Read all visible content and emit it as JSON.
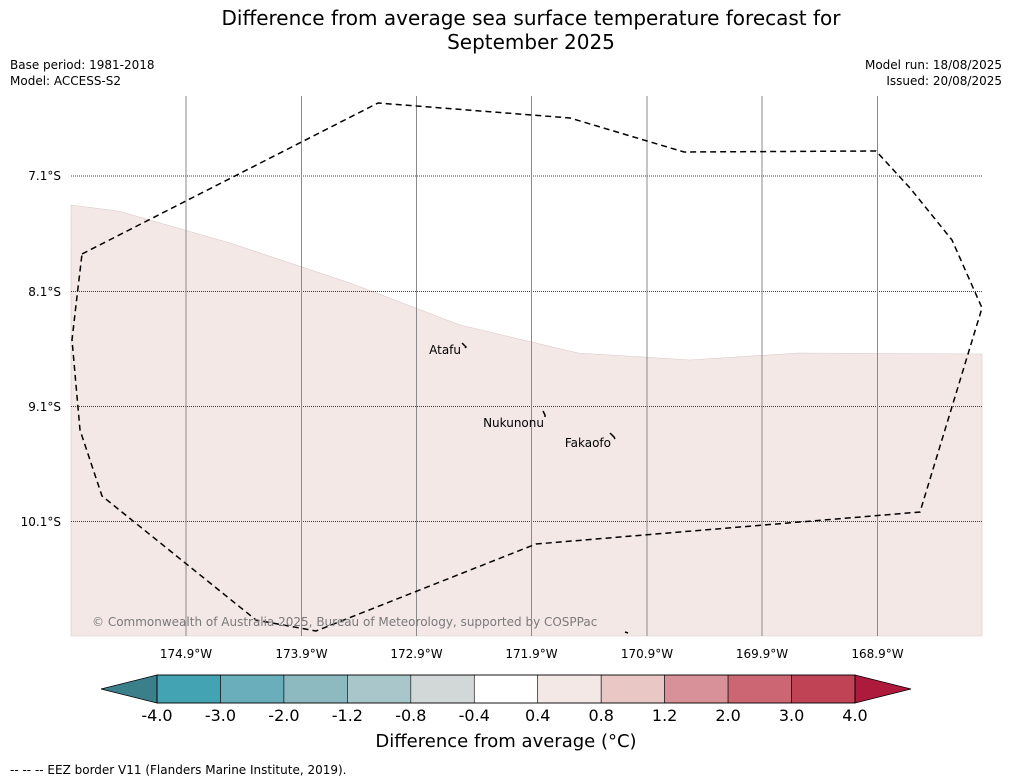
{
  "title_line1": "Difference from average sea surface temperature forecast for",
  "title_line2": "September 2025",
  "base_period": "Base period: 1981-2018",
  "model": "Model: ACCESS-S2",
  "model_run": "Model run: 18/08/2025",
  "issued": "Issued: 20/08/2025",
  "map": {
    "lat_labels": [
      "7.1°S",
      "8.1°S",
      "9.1°S",
      "10.1°S"
    ],
    "lat_values": [
      -7.1,
      -8.1,
      -9.1,
      -10.1
    ],
    "lon_labels": [
      "174.9°W",
      "173.9°W",
      "172.9°W",
      "171.9°W",
      "170.9°W",
      "169.9°W",
      "168.9°W"
    ],
    "lon_values": [
      -174.9,
      -173.9,
      -172.9,
      -171.9,
      -170.9,
      -169.9,
      -168.9
    ],
    "places": [
      {
        "name": "Atafu"
      },
      {
        "name": "Nukunonu"
      },
      {
        "name": "Fakaofo"
      }
    ],
    "copyright": "© Commonwealth of Australia 2025, Bureau of Meteorology, supported by COSPPac",
    "shading_color": "#f4e8e7",
    "shading_category": "0.4 to 0.8"
  },
  "colorbar": {
    "ticks": [
      "-4.0",
      "-3.0",
      "-2.0",
      "-1.2",
      "-0.8",
      "-0.4",
      "0.4",
      "0.8",
      "1.2",
      "2.0",
      "3.0",
      "4.0"
    ],
    "low_extend_color": "#3a7f8a",
    "high_extend_color": "#ad1a3c",
    "colors": [
      "#44a3b3",
      "#6aaebb",
      "#8db9c1",
      "#a9c6ca",
      "#d2d8d8",
      "#ffffff",
      "#f4e8e7",
      "#e9c7c4",
      "#d99199",
      "#cc6672",
      "#c04255"
    ],
    "label": "Difference from average (°C)"
  },
  "footer": "--  --  -- EEZ border V11 (Flanders Marine Institute, 2019)."
}
